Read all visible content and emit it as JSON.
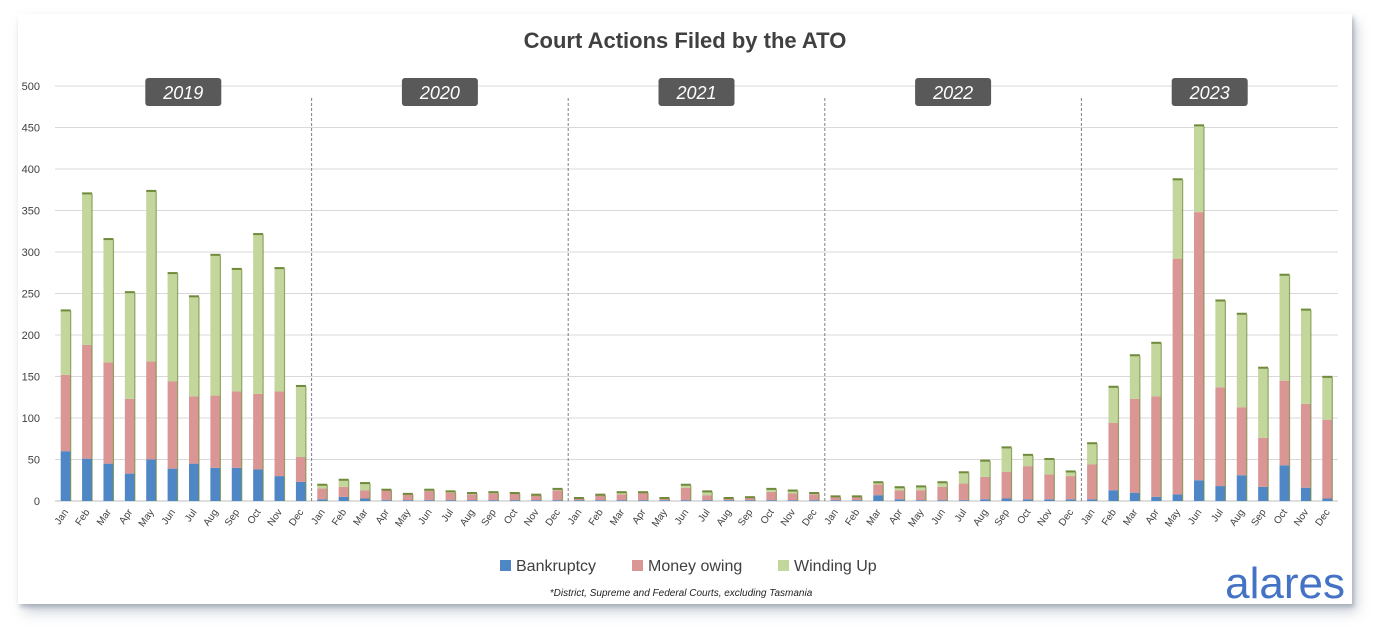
{
  "chart_data": {
    "type": "bar",
    "stacked": true,
    "title": "Court Actions Filed by the ATO",
    "ylim": [
      0,
      500
    ],
    "yticks": [
      0,
      50,
      100,
      150,
      200,
      250,
      300,
      350,
      400,
      450,
      500
    ],
    "grid": true,
    "legend_position": "bottom",
    "years": [
      "2019",
      "2020",
      "2021",
      "2022",
      "2023"
    ],
    "months": [
      "Jan",
      "Feb",
      "Mar",
      "Apr",
      "May",
      "Jun",
      "Jul",
      "Aug",
      "Sep",
      "Oct",
      "Nov",
      "Dec"
    ],
    "series": [
      {
        "name": "Bankruptcy",
        "color": "#4e86c6",
        "values": [
          60,
          51,
          45,
          33,
          50,
          39,
          45,
          40,
          40,
          38,
          30,
          23,
          2,
          5,
          3,
          1,
          1,
          1,
          1,
          1,
          1,
          1,
          1,
          1,
          1,
          1,
          1,
          1,
          1,
          1,
          1,
          1,
          1,
          1,
          1,
          1,
          1,
          1,
          7,
          2,
          1,
          1,
          1,
          2,
          3,
          2,
          2,
          2,
          2,
          13,
          10,
          5,
          8,
          25,
          18,
          31,
          17,
          43,
          16,
          3
        ]
      },
      {
        "name": "Money owing",
        "color": "#d99694",
        "values": [
          92,
          137,
          122,
          90,
          118,
          105,
          81,
          87,
          92,
          91,
          102,
          30,
          13,
          12,
          10,
          12,
          7,
          11,
          9,
          7,
          8,
          8,
          6,
          12,
          2,
          6,
          7,
          9,
          2,
          15,
          6,
          2,
          3,
          10,
          8,
          7,
          4,
          4,
          13,
          11,
          12,
          16,
          20,
          27,
          32,
          40,
          30,
          28,
          42,
          81,
          113,
          121,
          284,
          323,
          119,
          82,
          59,
          102,
          101,
          95
        ]
      },
      {
        "name": "Winding Up",
        "color": "#c3d69b",
        "values": [
          77,
          182,
          148,
          128,
          205,
          130,
          120,
          169,
          147,
          192,
          148,
          85,
          4,
          8,
          8,
          0,
          0,
          1,
          1,
          1,
          1,
          0,
          0,
          1,
          0,
          0,
          2,
          0,
          0,
          3,
          4,
          0,
          0,
          3,
          3,
          1,
          0,
          0,
          2,
          3,
          4,
          5,
          13,
          19,
          29,
          13,
          18,
          5,
          25,
          43,
          52,
          64,
          95,
          104,
          104,
          112,
          84,
          127,
          113,
          51
        ]
      }
    ]
  },
  "footnote": "*District, Supreme and Federal Courts, excluding Tasmania",
  "brand": "alares"
}
